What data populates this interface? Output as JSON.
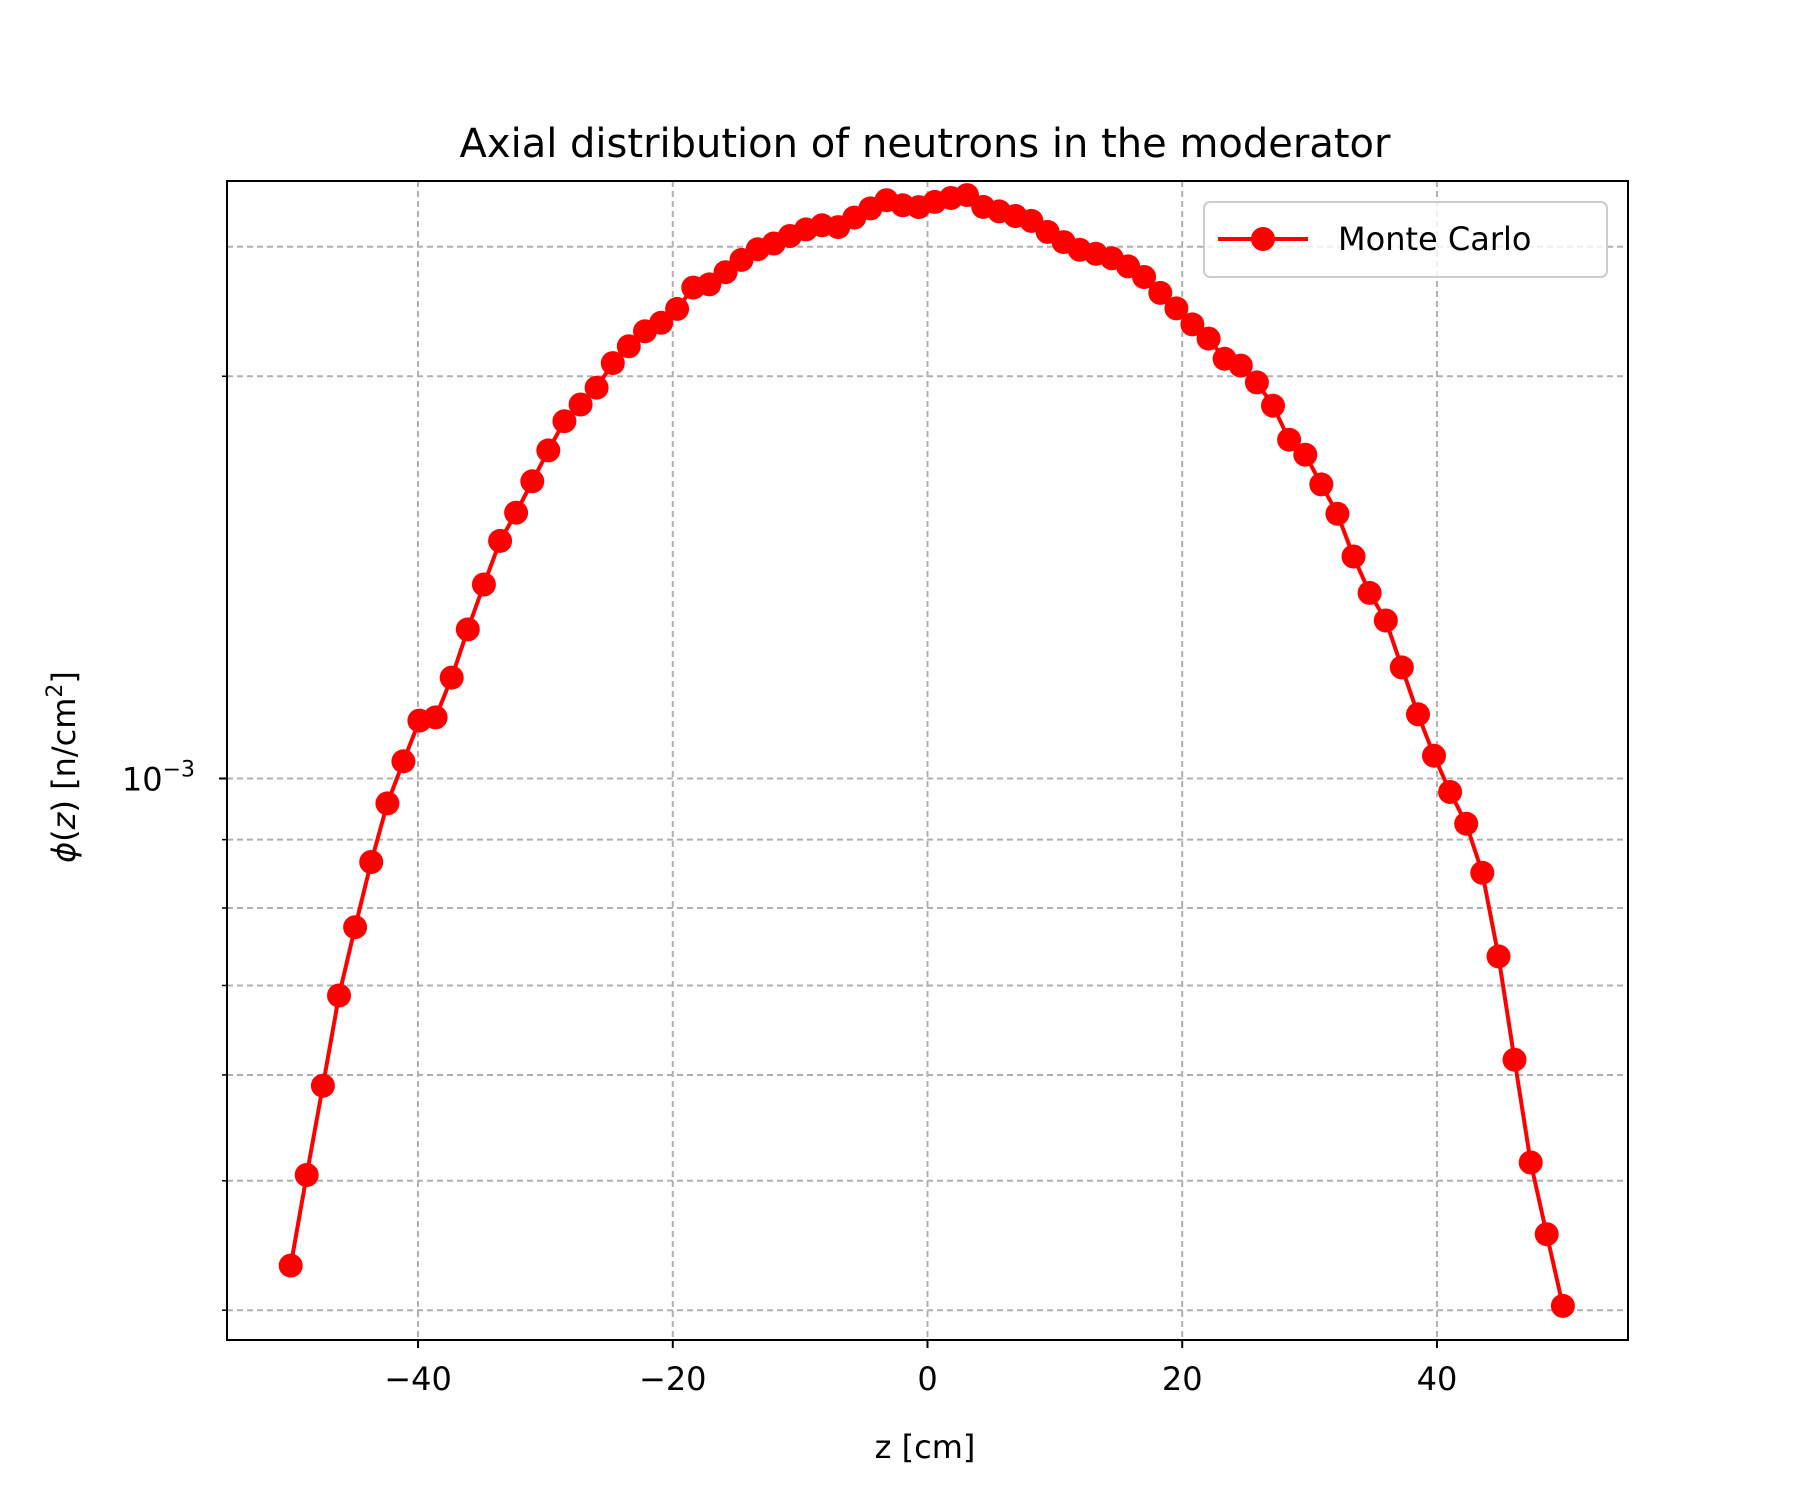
{
  "chart_data": {
    "type": "line",
    "title": "Axial distribution of neutrons in the moderator",
    "xlabel": "z [cm]",
    "ylabel_parts": {
      "symbol": "ϕ",
      "open": "(",
      "var": "z",
      "close": ")",
      "unit_pre": " [n/cm",
      "unit_exp": "2",
      "unit_post": "]"
    },
    "xlim": [
      -55,
      55
    ],
    "ylim": [
      0.00038,
      0.0028
    ],
    "yscale": "log",
    "grid": true,
    "legend_position": "top-right",
    "x_ticks": [
      {
        "value": -40,
        "label": "−40"
      },
      {
        "value": -20,
        "label": "−20"
      },
      {
        "value": 0,
        "label": "0"
      },
      {
        "value": 20,
        "label": "20"
      },
      {
        "value": 40,
        "label": "40"
      }
    ],
    "y_major_ticks": [
      {
        "value": 0.001,
        "base": "10",
        "exp": "−3"
      }
    ],
    "y_minor_ticks": [
      0.0004,
      0.0005,
      0.0006,
      0.0007,
      0.0008,
      0.0009,
      0.002
    ],
    "y_extra_gridlines": [
      0.0025
    ],
    "series": [
      {
        "name": "Monte Carlo",
        "color": "#ff0000",
        "marker": "circle",
        "x": [
          -50.0,
          -48.74,
          -47.47,
          -46.21,
          -44.94,
          -43.68,
          -42.41,
          -41.15,
          -39.89,
          -38.62,
          -37.36,
          -36.09,
          -34.83,
          -33.56,
          -32.3,
          -31.03,
          -29.77,
          -28.51,
          -27.24,
          -25.98,
          -24.71,
          -23.45,
          -22.18,
          -20.92,
          -19.66,
          -18.39,
          -17.13,
          -15.86,
          -14.6,
          -13.33,
          -12.07,
          -10.8,
          -9.54,
          -8.28,
          -7.01,
          -5.75,
          -4.48,
          -3.22,
          -1.95,
          -0.69,
          0.57,
          1.84,
          3.1,
          4.37,
          5.63,
          6.9,
          8.16,
          9.43,
          10.69,
          11.95,
          13.22,
          14.48,
          15.75,
          17.01,
          18.28,
          19.54,
          20.8,
          22.07,
          23.33,
          24.6,
          25.86,
          27.13,
          28.39,
          29.66,
          30.92,
          32.18,
          33.45,
          34.71,
          35.98,
          37.24,
          38.51,
          39.77,
          41.03,
          42.3,
          43.56,
          44.83,
          46.09,
          47.36,
          48.62,
          49.89
        ],
        "y": [
          0.000432,
          0.000505,
          0.000589,
          0.000688,
          0.000774,
          0.000866,
          0.000958,
          0.00103,
          0.001105,
          0.001111,
          0.00119,
          0.001293,
          0.001397,
          0.001506,
          0.001581,
          0.001669,
          0.00176,
          0.001851,
          0.001905,
          0.001961,
          0.002046,
          0.002106,
          0.002161,
          0.002193,
          0.002246,
          0.00233,
          0.002343,
          0.002393,
          0.002444,
          0.002489,
          0.002514,
          0.002547,
          0.002576,
          0.002594,
          0.002586,
          0.002629,
          0.002671,
          0.002709,
          0.002685,
          0.002677,
          0.002701,
          0.002719,
          0.002733,
          0.002678,
          0.002657,
          0.002636,
          0.002614,
          0.002565,
          0.00252,
          0.002487,
          0.00247,
          0.002451,
          0.002417,
          0.002373,
          0.002309,
          0.002248,
          0.002187,
          0.002134,
          0.002061,
          0.002037,
          0.001979,
          0.001901,
          0.001793,
          0.001747,
          0.00166,
          0.001578,
          0.001466,
          0.001377,
          0.001313,
          0.001211,
          0.001117,
          0.00104,
          0.000977,
          0.000925,
          0.00085,
          0.000736,
          0.000616,
          0.000516,
          0.000456,
          0.000403
        ]
      }
    ]
  }
}
